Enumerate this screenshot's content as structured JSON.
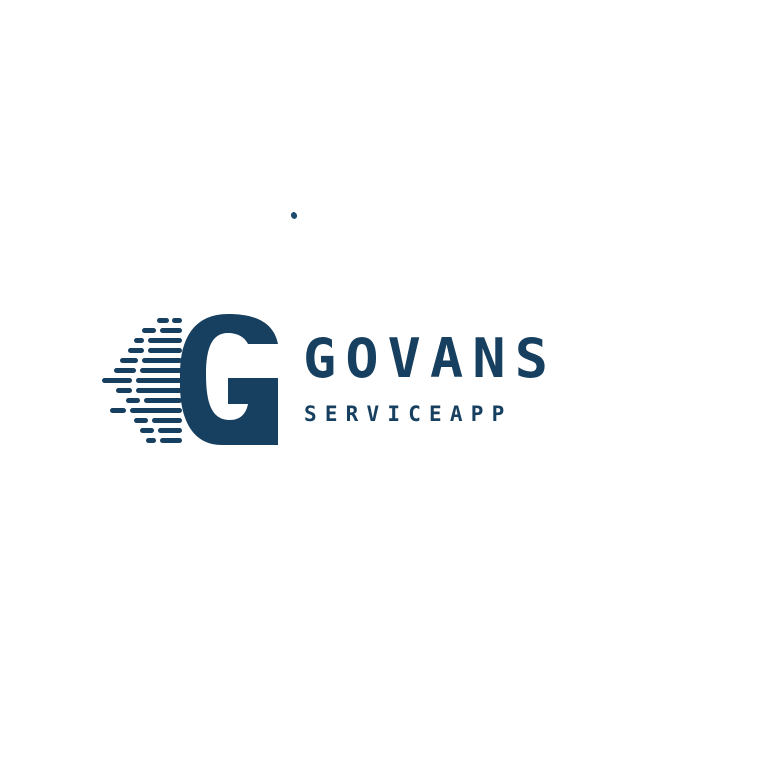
{
  "brand": {
    "mark_letter": "G",
    "name": "GOVANS",
    "tagline": "SERVICEAPP"
  },
  "colors": {
    "primary": "#173f5f",
    "background": "#ffffff"
  },
  "icons": {
    "logo_mark": "speed-lines-g-icon"
  }
}
